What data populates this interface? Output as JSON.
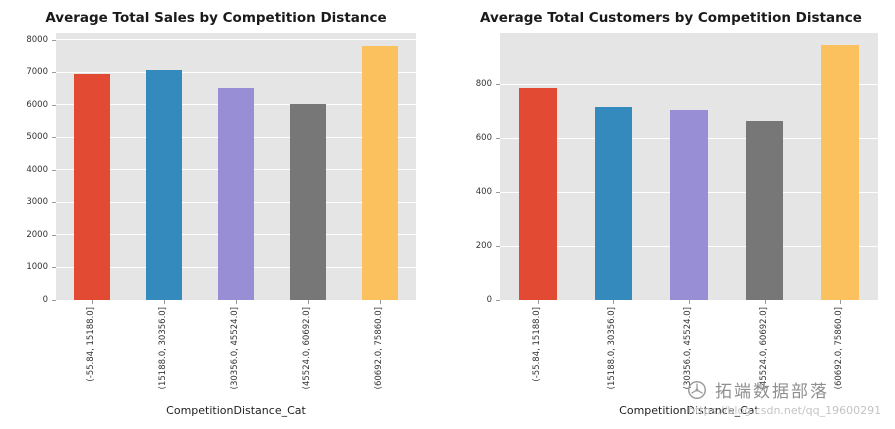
{
  "style": {
    "figure_bg": "#ffffff",
    "plot_bg": "#e5e5e5",
    "grid_color": "#ffffff",
    "tick_label_color": "#333333",
    "title_color": "#1a1a1a",
    "bar_colors": [
      "#E24A33",
      "#348ABD",
      "#988ED5",
      "#777777",
      "#FBC15E"
    ]
  },
  "chart_data": [
    {
      "type": "bar",
      "title": "Average Total Sales by Competition Distance",
      "xlabel": "CompetitionDistance_Cat",
      "ylabel": "",
      "categories": [
        "(-55.84, 15188.0]",
        "(15188.0, 30356.0]",
        "(30356.0, 45524.0]",
        "(45524.0, 60692.0]",
        "(60692.0, 75860.0]"
      ],
      "values": [
        6950,
        7060,
        6500,
        6020,
        7800
      ],
      "yticks": [
        0,
        1000,
        2000,
        3000,
        4000,
        5000,
        6000,
        7000,
        8000
      ],
      "ylim": [
        0,
        8200
      ],
      "grid": true,
      "legend": false
    },
    {
      "type": "bar",
      "title": "Average Total Customers by Competition Distance",
      "xlabel": "CompetitionDistance_Cat",
      "ylabel": "",
      "categories": [
        "(-55.84, 15188.0]",
        "(15188.0, 30356.0]",
        "(30356.0, 45524.0]",
        "(45524.0, 60692.0]",
        "(60692.0, 75860.0]"
      ],
      "values": [
        785,
        715,
        705,
        665,
        945
      ],
      "yticks": [
        0,
        200,
        400,
        600,
        800
      ],
      "ylim": [
        0,
        990
      ],
      "grid": true,
      "legend": false
    }
  ],
  "watermark": {
    "brand": "拓端数据部落",
    "url": "https://blog.csdn.net/qq_19600291"
  }
}
